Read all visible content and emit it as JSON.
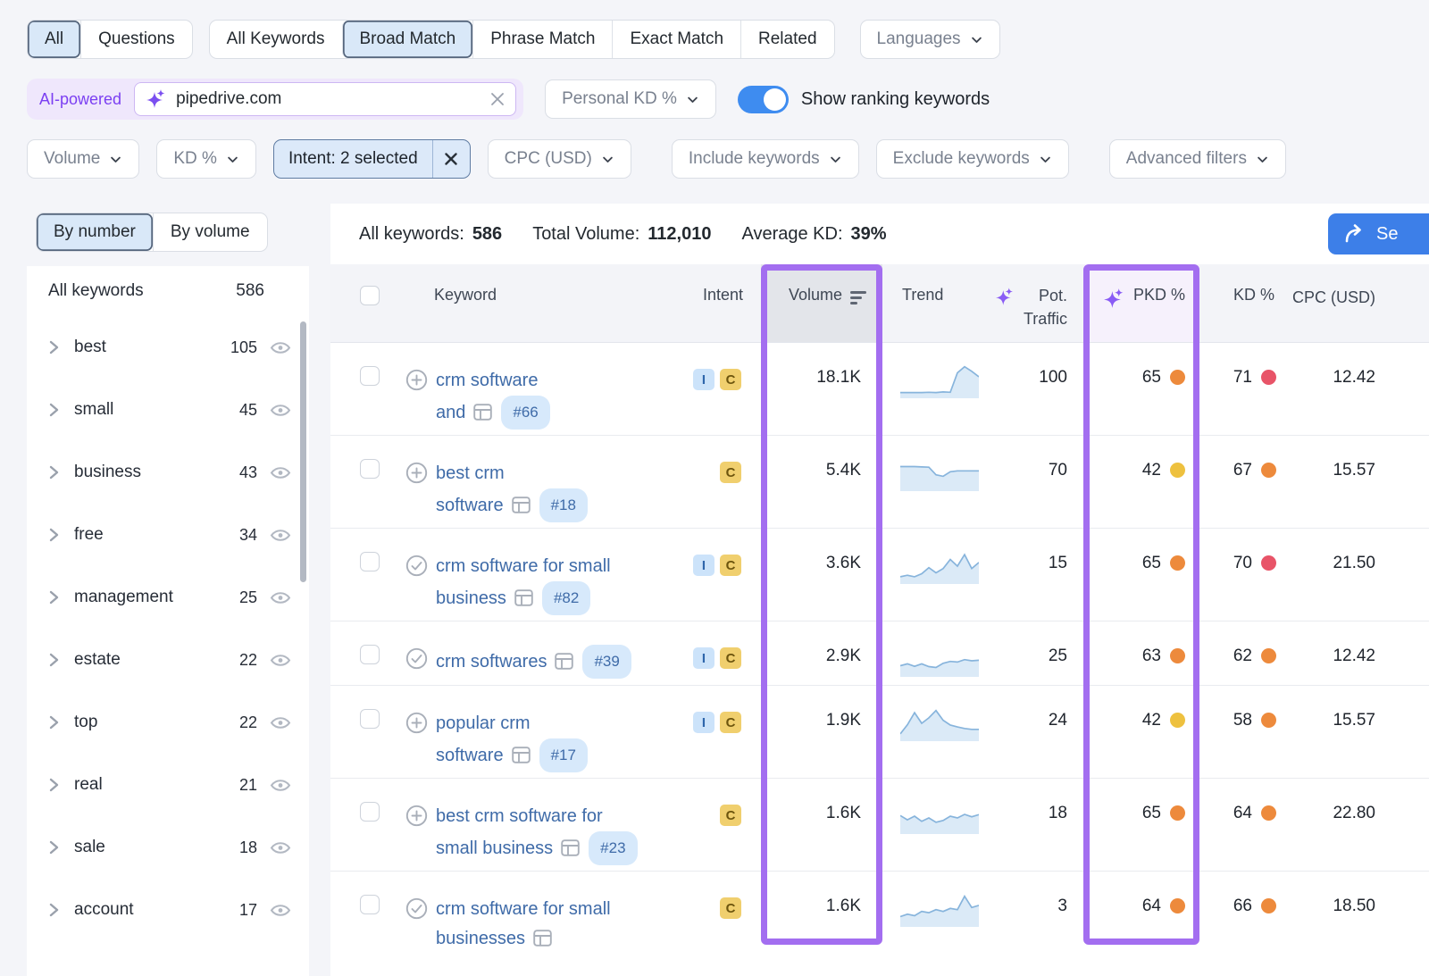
{
  "top_tabs": {
    "scope": [
      {
        "label": "All",
        "selected": true
      },
      {
        "label": "Questions",
        "selected": false
      }
    ],
    "match": [
      {
        "label": "All Keywords",
        "selected": false
      },
      {
        "label": "Broad Match",
        "selected": true
      },
      {
        "label": "Phrase Match",
        "selected": false
      },
      {
        "label": "Exact Match",
        "selected": false
      },
      {
        "label": "Related",
        "selected": false
      }
    ],
    "languages_label": "Languages"
  },
  "search": {
    "ai_label": "AI-powered",
    "query": "pipedrive.com",
    "personal_kd_label": "Personal KD %",
    "toggle_label": "Show ranking keywords",
    "toggle_on": true
  },
  "filters": [
    {
      "label": "Volume"
    },
    {
      "label": "KD %"
    },
    {
      "label": "Intent: 2 selected",
      "selected": true
    },
    {
      "label": "CPC (USD)"
    },
    {
      "label": "Include keywords"
    },
    {
      "label": "Exclude keywords"
    },
    {
      "label": "Advanced filters"
    }
  ],
  "sidebar": {
    "tabs": [
      {
        "label": "By number",
        "selected": true
      },
      {
        "label": "By volume",
        "selected": false
      }
    ],
    "all_label": "All keywords",
    "all_count": "586",
    "groups": [
      {
        "label": "best",
        "count": "105"
      },
      {
        "label": "small",
        "count": "45"
      },
      {
        "label": "business",
        "count": "43"
      },
      {
        "label": "free",
        "count": "34"
      },
      {
        "label": "management",
        "count": "25"
      },
      {
        "label": "estate",
        "count": "22"
      },
      {
        "label": "top",
        "count": "22"
      },
      {
        "label": "real",
        "count": "21"
      },
      {
        "label": "sale",
        "count": "18"
      },
      {
        "label": "account",
        "count": "17"
      }
    ]
  },
  "summary": {
    "all_keywords_label": "All keywords:",
    "all_keywords": "586",
    "total_volume_label": "Total Volume:",
    "total_volume": "112,010",
    "avg_kd_label": "Average KD:",
    "avg_kd": "39%",
    "send_label": "Se"
  },
  "table": {
    "headers": {
      "keyword": "Keyword",
      "intent": "Intent",
      "volume": "Volume",
      "trend": "Trend",
      "pot_traffic": "Pot. Traffic",
      "pkd": "PKD %",
      "kd": "KD %",
      "cpc": "CPC (USD)"
    },
    "rows": [
      {
        "icon_plus": true,
        "icon_check": false,
        "l1": {
          "text": "crm software",
          "serp": false,
          "badge": ""
        },
        "l2": {
          "text": "and",
          "serp": true,
          "badge": "#66"
        },
        "intent_i": "I",
        "intent_c": "C",
        "volume": "18.1K",
        "trend": [
          0.1,
          0.1,
          0.1,
          0.1,
          0.11,
          0.1,
          0.12,
          0.11,
          0.75,
          0.95,
          0.8,
          0.62
        ],
        "pot_traffic": "100",
        "pkd": "65",
        "pkd_dot": "#ed8a3c",
        "kd": "71",
        "kd_dot": "#e85468",
        "cpc": "12.42"
      },
      {
        "icon_plus": true,
        "icon_check": false,
        "l1": {
          "text": "best crm",
          "serp": false,
          "badge": ""
        },
        "l2": {
          "text": "software",
          "serp": true,
          "badge": "#18"
        },
        "intent_i": "",
        "intent_c": "C",
        "volume": "5.4K",
        "trend": [
          0.72,
          0.72,
          0.72,
          0.71,
          0.7,
          0.45,
          0.4,
          0.55,
          0.58,
          0.58,
          0.58,
          0.58
        ],
        "pot_traffic": "70",
        "pkd": "42",
        "pkd_dot": "#eec13f",
        "kd": "67",
        "kd_dot": "#ed8a3c",
        "cpc": "15.57"
      },
      {
        "icon_plus": false,
        "icon_check": true,
        "l1": {
          "text": "crm software for small",
          "serp": false,
          "badge": ""
        },
        "l2": {
          "text": "business",
          "serp": true,
          "badge": "#82"
        },
        "intent_i": "I",
        "intent_c": "C",
        "volume": "3.6K",
        "trend": [
          0.15,
          0.2,
          0.15,
          0.25,
          0.45,
          0.28,
          0.42,
          0.72,
          0.5,
          0.88,
          0.42,
          0.62
        ],
        "pot_traffic": "15",
        "pkd": "65",
        "pkd_dot": "#ed8a3c",
        "kd": "70",
        "kd_dot": "#e85468",
        "cpc": "21.50"
      },
      {
        "icon_plus": false,
        "icon_check": true,
        "l1": {
          "text": "crm softwares",
          "serp": true,
          "badge": "#39"
        },
        "l2": {
          "text": "",
          "serp": false,
          "badge": ""
        },
        "intent_i": "I",
        "intent_c": "C",
        "volume": "2.9K",
        "trend": [
          0.28,
          0.34,
          0.26,
          0.34,
          0.25,
          0.22,
          0.36,
          0.42,
          0.4,
          0.48,
          0.44,
          0.46
        ],
        "pot_traffic": "25",
        "pkd": "63",
        "pkd_dot": "#ed8a3c",
        "kd": "62",
        "kd_dot": "#ed8a3c",
        "cpc": "12.42"
      },
      {
        "icon_plus": true,
        "icon_check": false,
        "l1": {
          "text": "popular crm",
          "serp": false,
          "badge": ""
        },
        "l2": {
          "text": "software",
          "serp": true,
          "badge": "#17"
        },
        "intent_i": "I",
        "intent_c": "C",
        "volume": "1.9K",
        "trend": [
          0.15,
          0.45,
          0.85,
          0.5,
          0.68,
          0.92,
          0.6,
          0.44,
          0.38,
          0.33,
          0.3,
          0.3
        ],
        "pot_traffic": "24",
        "pkd": "42",
        "pkd_dot": "#eec13f",
        "kd": "58",
        "kd_dot": "#ed8a3c",
        "cpc": "15.57"
      },
      {
        "icon_plus": true,
        "icon_check": false,
        "l1": {
          "text": "best crm software for",
          "serp": false,
          "badge": ""
        },
        "l2": {
          "text": "small business",
          "serp": true,
          "badge": "#23"
        },
        "intent_i": "",
        "intent_c": "C",
        "volume": "1.6K",
        "trend": [
          0.52,
          0.38,
          0.5,
          0.33,
          0.44,
          0.3,
          0.36,
          0.5,
          0.44,
          0.56,
          0.48,
          0.55
        ],
        "pot_traffic": "18",
        "pkd": "65",
        "pkd_dot": "#ed8a3c",
        "kd": "64",
        "kd_dot": "#ed8a3c",
        "cpc": "22.80"
      },
      {
        "icon_plus": false,
        "icon_check": true,
        "l1": {
          "text": "crm software for small",
          "serp": false,
          "badge": ""
        },
        "l2": {
          "text": "businesses",
          "serp": true,
          "badge": ""
        },
        "intent_i": "",
        "intent_c": "C",
        "volume": "1.6K",
        "trend": [
          0.25,
          0.33,
          0.28,
          0.42,
          0.38,
          0.48,
          0.42,
          0.52,
          0.48,
          0.92,
          0.55,
          0.62
        ],
        "pot_traffic": "3",
        "pkd": "64",
        "pkd_dot": "#ed8a3c",
        "kd": "66",
        "kd_dot": "#ed8a3c",
        "cpc": "18.50"
      }
    ]
  },
  "colors": {
    "accent_blue": "#3d7fe8",
    "highlight_purple": "#a36ef0",
    "sparkle_purple": "#8a5cf5",
    "dot_red": "#e85468",
    "dot_orange": "#ed8a3c",
    "dot_yellow": "#eec13f",
    "trend_line": "#87b4dc",
    "trend_fill": "#dbeaf7"
  }
}
